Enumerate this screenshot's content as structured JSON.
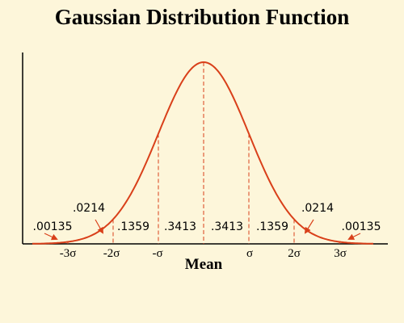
{
  "title": "Gaussian Distribution Function",
  "axis_labels": [
    "-3σ",
    "-2σ",
    "-σ",
    "σ",
    "2σ",
    "3σ"
  ],
  "center_label": "Mean",
  "region_labels": [
    ".00135",
    ".0214",
    ".1359",
    ".3413",
    ".3413",
    ".1359",
    ".0214",
    ".00135"
  ]
}
